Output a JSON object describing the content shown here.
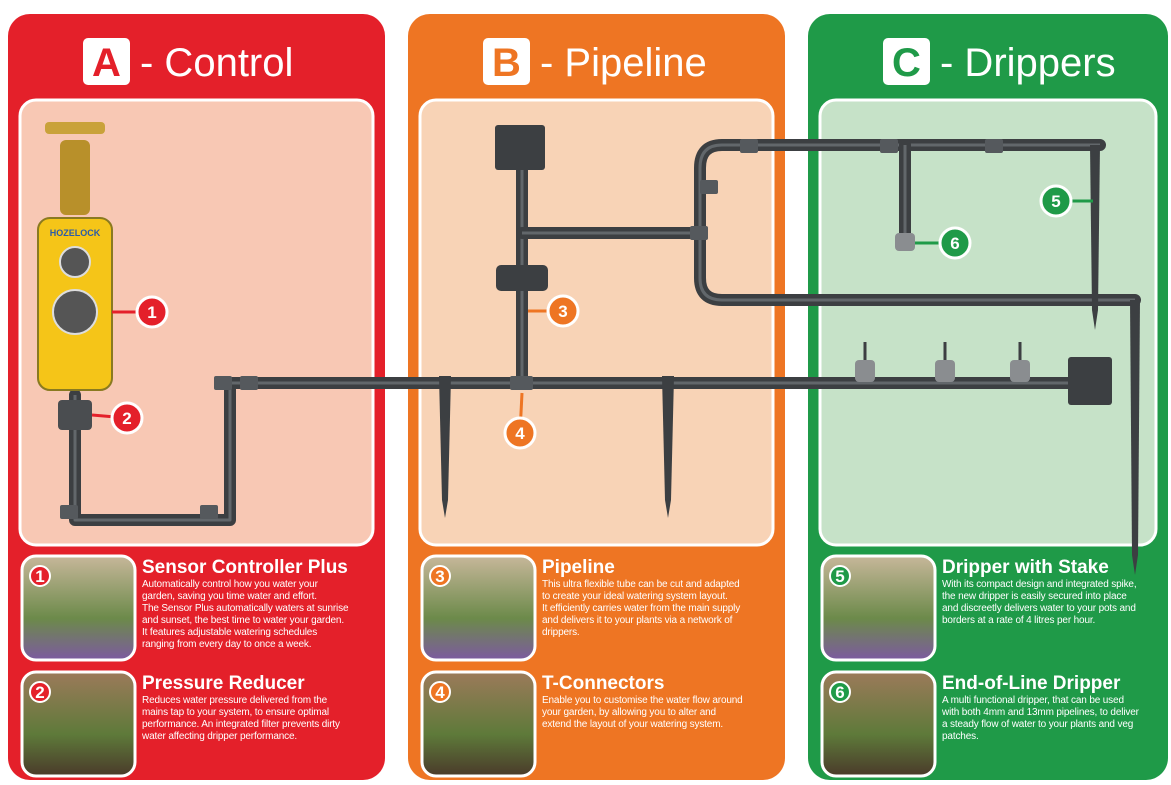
{
  "panels": [
    {
      "letter": "A",
      "title": "- Control",
      "items": [
        {
          "number": 1,
          "title": "Sensor Controller Plus",
          "text": [
            "Automatically control how you water your",
            "garden, saving you time water and effort.",
            "The Sensor Plus automatically waters at sunrise",
            "and sunset, the best time to water your garden.",
            "It features adjustable watering schedules",
            "ranging from every day to once a week."
          ]
        },
        {
          "number": 2,
          "title": "Pressure Reducer",
          "text": [
            "Reduces water pressure delivered from the",
            "mains tap to your system, to ensure optimal",
            "performance. An integrated filter prevents dirty",
            "water affecting dripper performance."
          ]
        }
      ]
    },
    {
      "letter": "B",
      "title": "- Pipeline",
      "items": [
        {
          "number": 3,
          "title": "Pipeline",
          "text": [
            "This ultra flexible tube can be cut and adapted",
            "to create your ideal watering system layout.",
            "It efficiently carries water from the main supply",
            "and delivers it to your plants via a network of",
            "drippers."
          ]
        },
        {
          "number": 4,
          "title": "T-Connectors",
          "text": [
            "Enable you to customise the water flow around",
            "your garden, by allowing you to alter and",
            "extend the layout of your watering system."
          ]
        }
      ]
    },
    {
      "letter": "C",
      "title": "- Drippers",
      "items": [
        {
          "number": 5,
          "title": "Dripper with Stake",
          "text": [
            "With its compact design and integrated spike,",
            "the new dripper is easily secured into place",
            "and discreetly delivers water to your pots and",
            "borders at a rate of 4 litres per hour."
          ]
        },
        {
          "number": 6,
          "title": "End-of-Line Dripper",
          "text": [
            "A multi functional dripper, that can be used",
            "with both 4mm and 13mm pipelines, to deliver",
            "a steady flow of water to your plants and veg",
            "patches."
          ]
        }
      ]
    }
  ],
  "callouts": [
    1,
    2,
    3,
    4,
    5,
    6
  ],
  "device_label": "HOZELOCK"
}
